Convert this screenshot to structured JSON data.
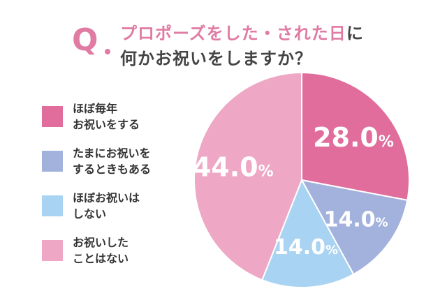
{
  "header": {
    "q_mark": "Q",
    "title_highlight": "プロポーズをした・された日",
    "title_rest": "に",
    "title_line2": "何かお祝いをしますか？"
  },
  "legend": [
    {
      "line1": "ほぼ毎年",
      "line2": "お祝いをする"
    },
    {
      "line1": "たまにお祝いを",
      "line2": "するときもある"
    },
    {
      "line1": "ほぼお祝いは",
      "line2": "しない"
    },
    {
      "line1": "お祝いした",
      "line2": "ことはない"
    }
  ],
  "chart_data": {
    "type": "pie",
    "title": "プロポーズをした・された日に何かお祝いをしますか？",
    "categories": [
      "ほぼ毎年お祝いをする",
      "たまにお祝いをするときもある",
      "ほぼお祝いはしない",
      "お祝いしたことはない"
    ],
    "values": [
      28.0,
      14.0,
      14.0,
      44.0
    ],
    "labels": [
      "28.0",
      "14.0",
      "14.0",
      "44.0"
    ],
    "unit": "%",
    "colors": [
      "#e06d9c",
      "#a3b2dd",
      "#a9d3f2",
      "#eea7c4"
    ],
    "start_angle": "12 o'clock",
    "direction": "clockwise",
    "legend_position": "left"
  }
}
